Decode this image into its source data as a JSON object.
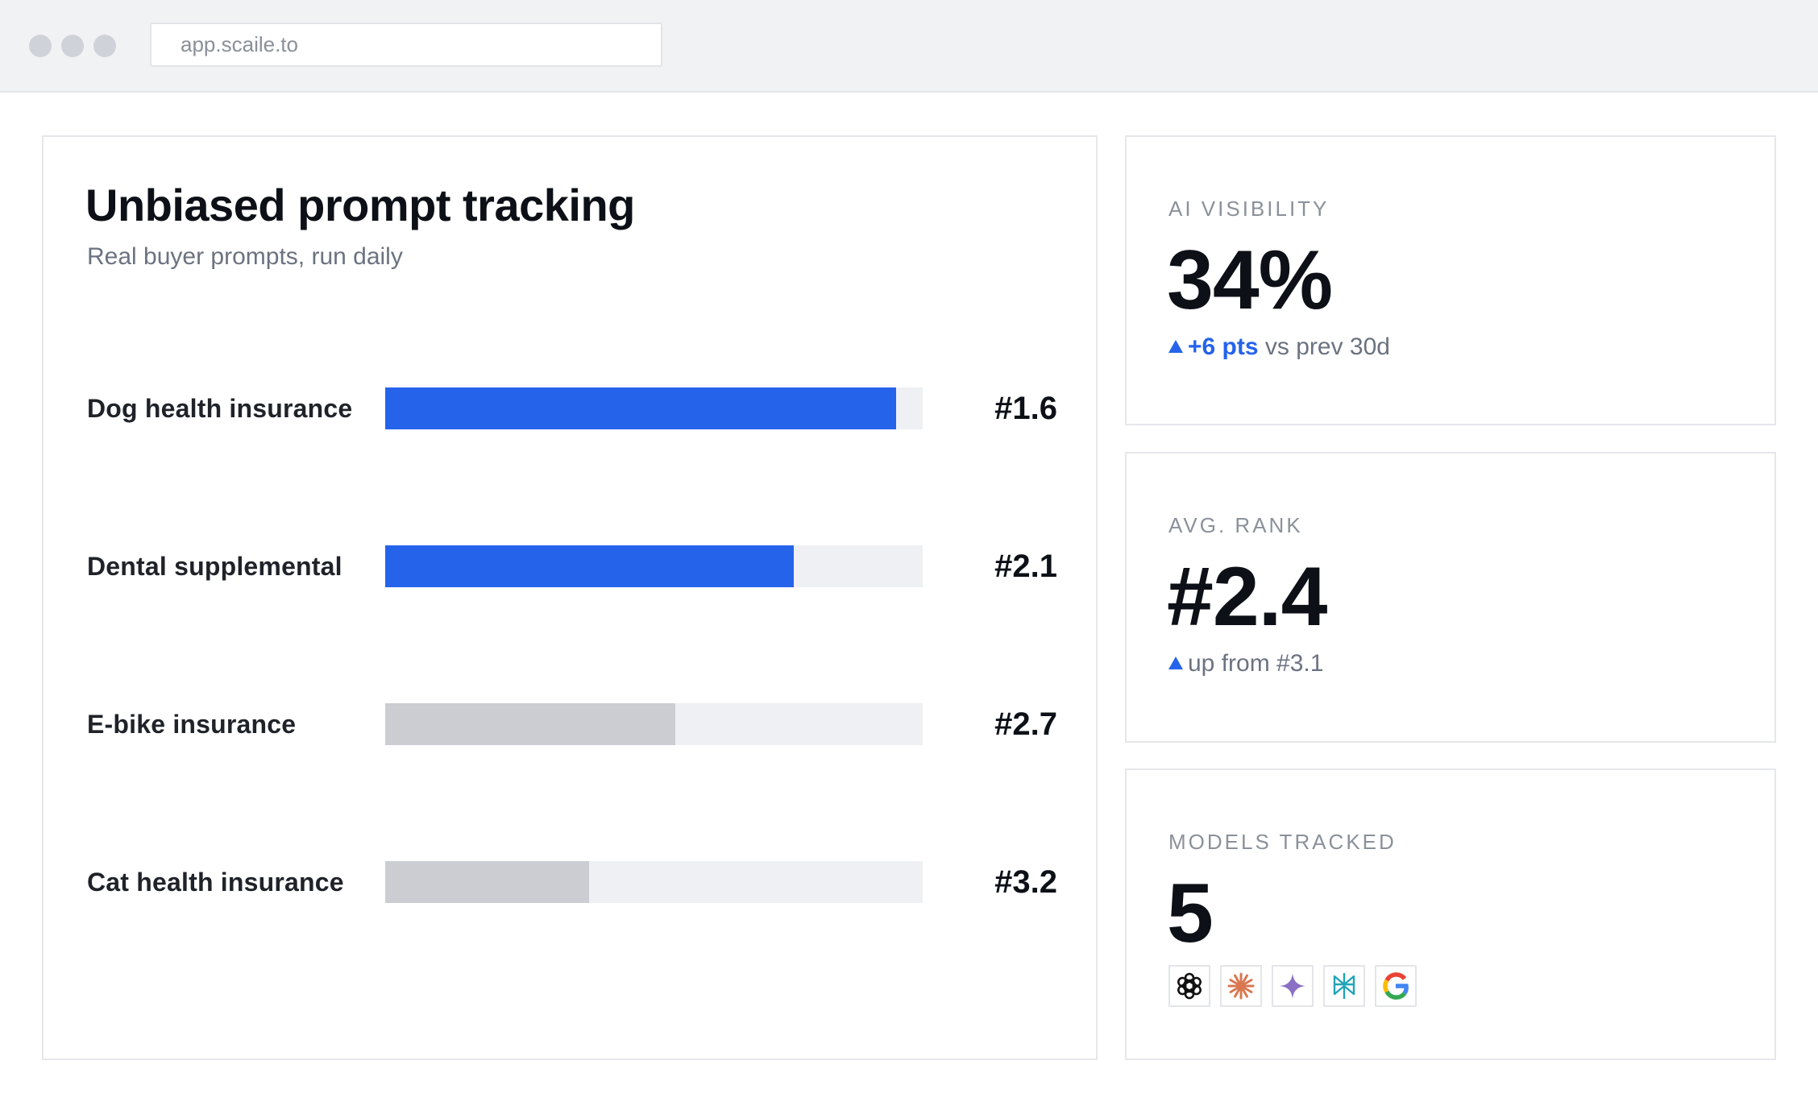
{
  "browser": {
    "url": "app.scaile.to"
  },
  "tracking": {
    "title": "Unbiased prompt tracking",
    "subtitle": "Real buyer prompts, run daily",
    "rows": [
      {
        "label": "Dog health insurance",
        "rank": "#1.6",
        "fill": 0.95,
        "color": "#2563eb"
      },
      {
        "label": "Dental supplemental",
        "rank": "#2.1",
        "fill": 0.76,
        "color": "#2563eb"
      },
      {
        "label": "E-bike insurance",
        "rank": "#2.7",
        "fill": 0.54,
        "color": "#cbcdd3"
      },
      {
        "label": "Cat health insurance",
        "rank": "#3.2",
        "fill": 0.38,
        "color": "#cbcdd3"
      }
    ]
  },
  "visibility": {
    "label": "AI VISIBILITY",
    "value": "34%",
    "delta": "+6 pts",
    "comparison": "vs prev 30d"
  },
  "avg_rank": {
    "label": "AVG. RANK",
    "value": "#2.4",
    "change": "up from #3.1"
  },
  "models": {
    "label": "MODELS TRACKED",
    "value": "5",
    "icons": [
      "chatgpt-icon",
      "claude-icon",
      "gemini-icon",
      "perplexity-icon",
      "google-icon"
    ]
  }
}
